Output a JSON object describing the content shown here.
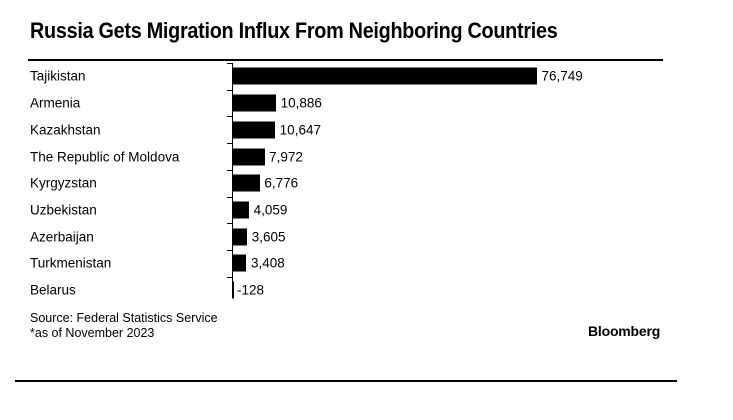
{
  "title": "Russia Gets Migration Influx From Neighboring Countries",
  "chart_data": {
    "type": "bar",
    "orientation": "horizontal",
    "title": "Russia Gets Migration Influx From Neighboring Countries",
    "categories": [
      "Tajikistan",
      "Armenia",
      "Kazakhstan",
      "The Republic of Moldova",
      "Kyrgyzstan",
      "Uzbekistan",
      "Azerbaijan",
      "Turkmenistan",
      "Belarus"
    ],
    "values": [
      76749,
      10886,
      10647,
      7972,
      6776,
      4059,
      3605,
      3408,
      -128
    ],
    "value_labels": [
      "76,749",
      "10,886",
      "10,647",
      "7,972",
      "6,776",
      "4,059",
      "3,605",
      "3,408",
      "-128"
    ],
    "xlim": [
      0,
      76749
    ],
    "xlabel": "",
    "ylabel": "",
    "grid": false,
    "legend": false,
    "value_label_position": "end-of-bar",
    "bar_color": "#000000",
    "background": "#ffffff"
  },
  "footer": {
    "source_line1": "Source: Federal Statistics Service",
    "source_line2": "*as of November 2023",
    "brand": "Bloomberg"
  },
  "colors": {
    "bar": "#000000",
    "text": "#000000",
    "rule": "#000000",
    "background": "#ffffff"
  }
}
